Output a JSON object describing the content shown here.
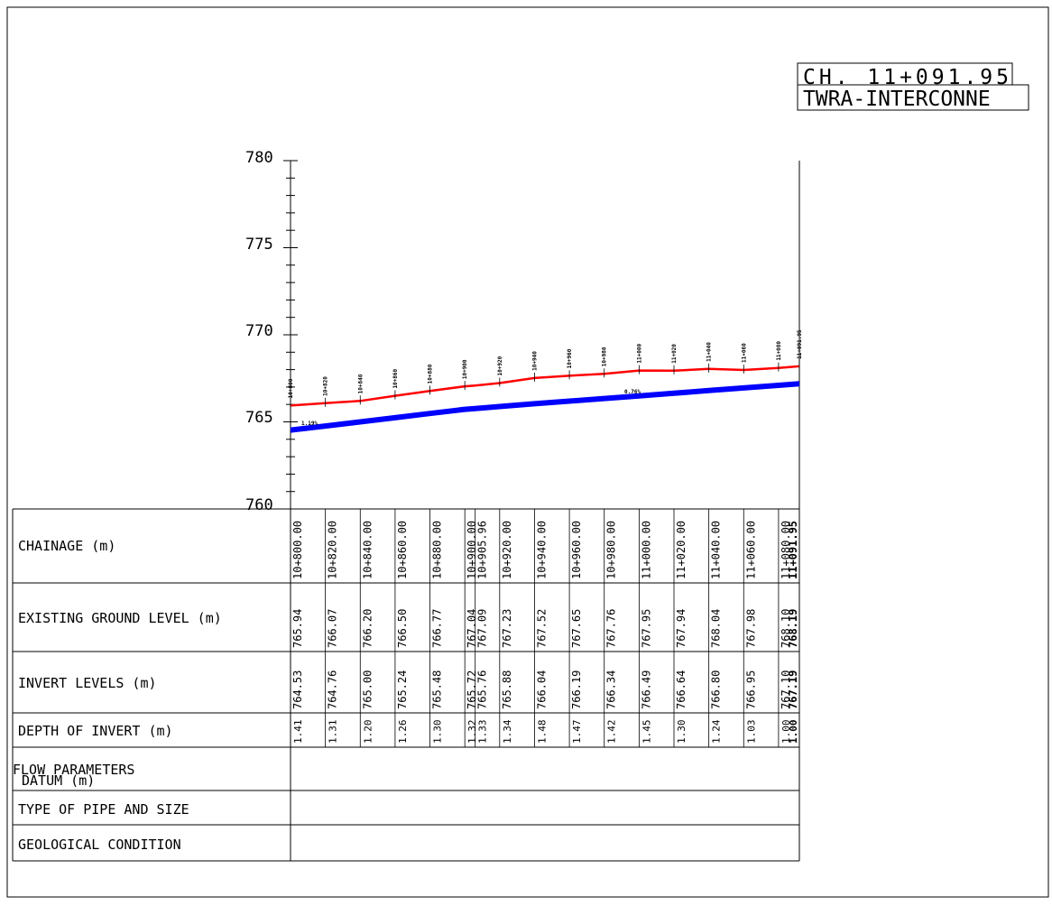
{
  "title_block": {
    "chainage_label": "CH. 11+091.95",
    "project_label": "TWRA-INTERCONNE"
  },
  "chart_data": {
    "type": "line",
    "ylim": [
      760,
      780
    ],
    "y_ticks": [
      "780",
      "775",
      "770",
      "765",
      "760"
    ],
    "x": [
      10800,
      10820,
      10840,
      10860,
      10880,
      10900,
      10905.96,
      10920,
      10940,
      10960,
      10980,
      11000,
      11020,
      11040,
      11060,
      11080,
      11091.95
    ],
    "series": [
      {
        "key": "ground",
        "color": "#ff0000",
        "values": [
          765.94,
          766.07,
          766.2,
          766.5,
          766.77,
          767.04,
          767.09,
          767.23,
          767.52,
          767.65,
          767.76,
          767.95,
          767.94,
          768.04,
          767.98,
          768.1,
          768.19
        ]
      },
      {
        "key": "invert",
        "color": "#0000ff",
        "values": [
          764.53,
          764.76,
          765.0,
          765.24,
          765.48,
          765.72,
          765.76,
          765.88,
          766.04,
          766.19,
          766.34,
          766.49,
          766.64,
          766.8,
          766.95,
          767.1,
          767.19
        ]
      }
    ],
    "slope_labels": [
      "1.19%",
      "0.76%"
    ],
    "profile_chainage_labels": [
      "10+800",
      "10+820",
      "10+840",
      "10+860",
      "10+880",
      "10+900",
      "10+920",
      "10+940",
      "10+960",
      "10+980",
      "11+000",
      "11+020",
      "11+040",
      "11+060",
      "11+080",
      "11+091.95"
    ]
  },
  "table": {
    "rows": [
      {
        "label": "CHAINAGE (m)",
        "values": [
          "10+800.00",
          "10+820.00",
          "10+840.00",
          "10+860.00",
          "10+880.00",
          "10+900.00",
          "10+905.96",
          "10+920.00",
          "10+940.00",
          "10+960.00",
          "10+980.00",
          "11+000.00",
          "11+020.00",
          "11+040.00",
          "11+060.00",
          "11+080.00",
          "11+091.95"
        ]
      },
      {
        "label": "EXISTING GROUND LEVEL (m)",
        "values": [
          "765.94",
          "766.07",
          "766.20",
          "766.50",
          "766.77",
          "767.04",
          "767.09",
          "767.23",
          "767.52",
          "767.65",
          "767.76",
          "767.95",
          "767.94",
          "768.04",
          "767.98",
          "768.10",
          "768.19"
        ]
      },
      {
        "label": "INVERT LEVELS (m)",
        "values": [
          "764.53",
          "764.76",
          "765.00",
          "765.24",
          "765.48",
          "765.72",
          "765.76",
          "765.88",
          "766.04",
          "766.19",
          "766.34",
          "766.49",
          "766.64",
          "766.80",
          "766.95",
          "767.10",
          "767.19"
        ]
      },
      {
        "label": "DEPTH OF INVERT (m)",
        "values": [
          "1.41",
          "1.31",
          "1.20",
          "1.26",
          "1.30",
          "1.32",
          "1.33",
          "1.34",
          "1.48",
          "1.47",
          "1.42",
          "1.45",
          "1.30",
          "1.24",
          "1.03",
          "1.00",
          "1.00"
        ]
      },
      {
        "label": "FLOW PARAMETERS",
        "values": []
      },
      {
        "label": "DATUM (m)",
        "values": []
      },
      {
        "label": "TYPE OF PIPE AND SIZE",
        "values": []
      },
      {
        "label": "GEOLOGICAL CONDITION",
        "values": []
      }
    ]
  }
}
